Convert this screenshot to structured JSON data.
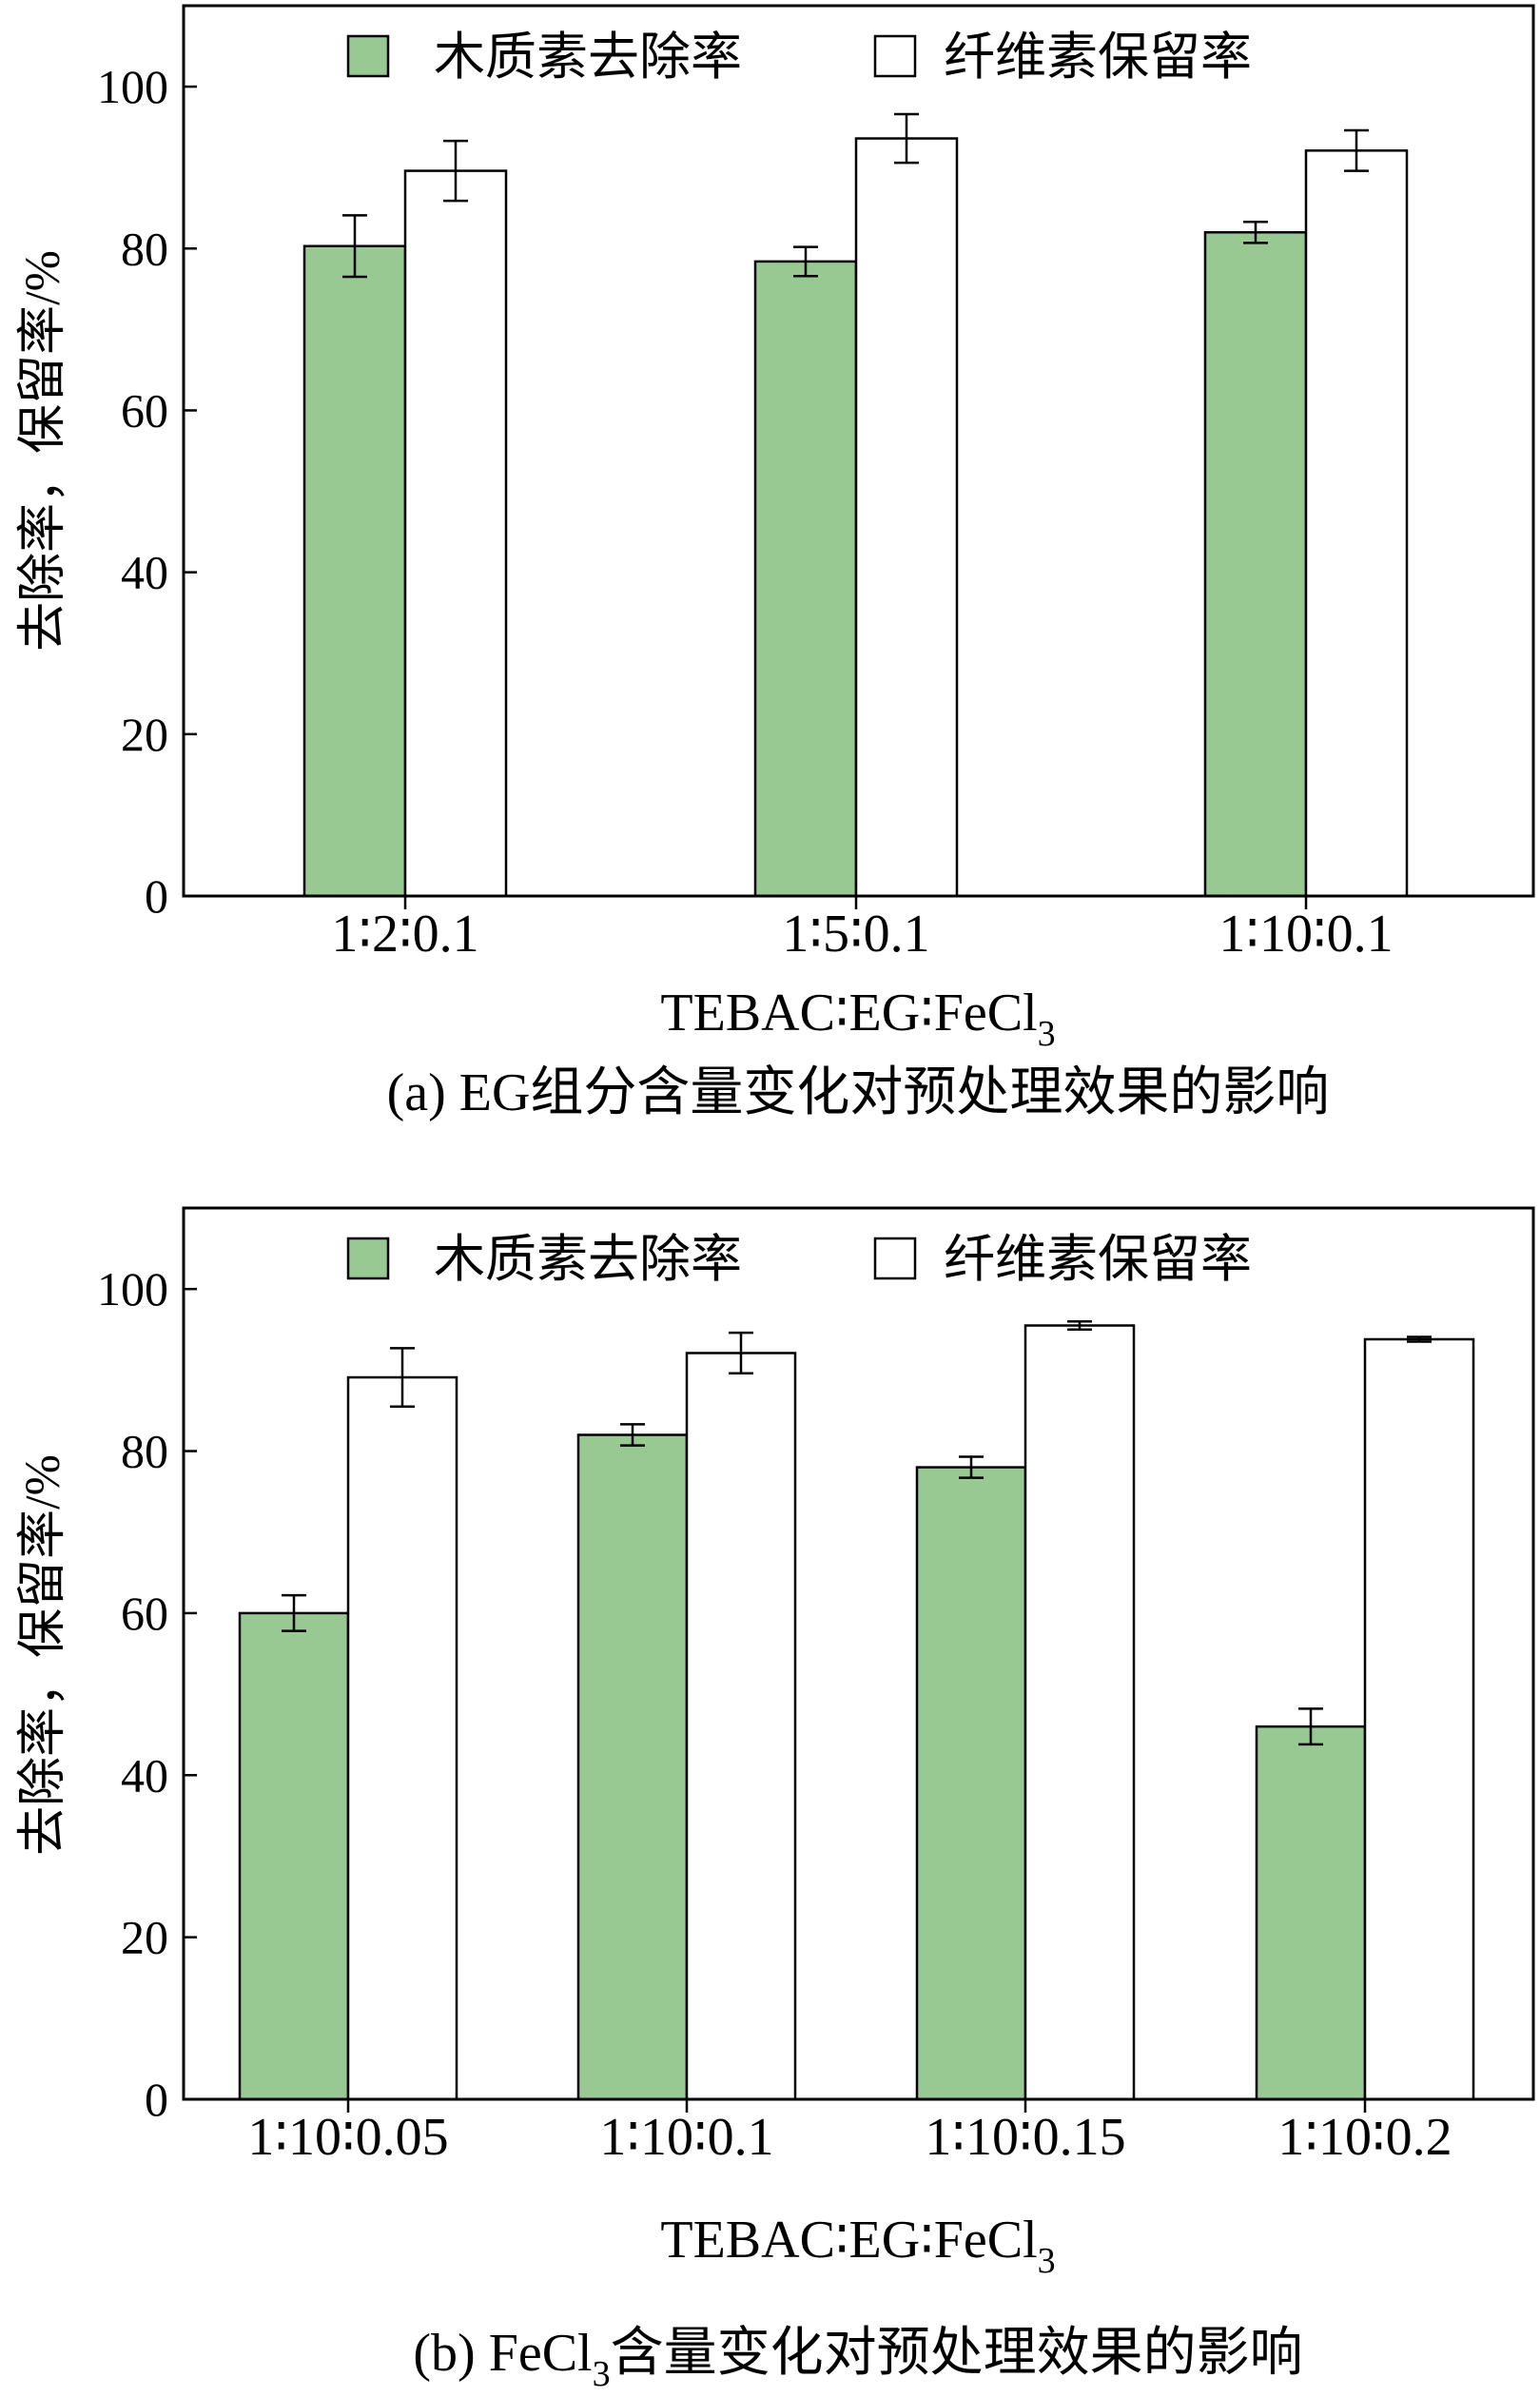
{
  "chart_data": [
    {
      "type": "bar",
      "panel_caption": "(a) EG组分含量变化对预处理效果的影响",
      "xlabel": "TEBAC∶EG∶FeCl3",
      "ylabel": "去除率，保留率/%",
      "ylim": [
        0,
        110
      ],
      "yticks": [
        0,
        20,
        40,
        60,
        80,
        100
      ],
      "categories": [
        "1∶2∶0.1",
        "1∶5∶0.1",
        "1∶10∶0.1"
      ],
      "series": [
        {
          "name": "木质素去除率",
          "color": "#98c993",
          "values": [
            80.3,
            78.4,
            82.0
          ],
          "errors": [
            3.8,
            1.8,
            1.3
          ]
        },
        {
          "name": "纤维素保留率",
          "color": "#ffffff",
          "values": [
            89.6,
            93.6,
            92.1
          ],
          "errors": [
            3.7,
            3.0,
            2.5
          ]
        }
      ],
      "legend_position": "top"
    },
    {
      "type": "bar",
      "panel_caption": "(b) FeCl3含量变化对预处理效果的影响",
      "xlabel": "TEBAC∶EG∶FeCl3",
      "ylabel": "去除率，保留率/%",
      "ylim": [
        0,
        110
      ],
      "yticks": [
        0,
        20,
        40,
        60,
        80,
        100
      ],
      "categories": [
        "1∶10∶0.05",
        "1∶10∶0.1",
        "1∶10∶0.15",
        "1∶10∶0.2"
      ],
      "series": [
        {
          "name": "木质素去除率",
          "color": "#98c993",
          "values": [
            60.0,
            82.0,
            78.0,
            46.0
          ],
          "errors": [
            2.2,
            1.3,
            1.3,
            2.2
          ]
        },
        {
          "name": "纤维素保留率",
          "color": "#ffffff",
          "values": [
            89.1,
            92.1,
            95.5,
            93.8
          ],
          "errors": [
            3.6,
            2.5,
            0.5,
            0.3
          ]
        }
      ],
      "legend_position": "top"
    }
  ]
}
